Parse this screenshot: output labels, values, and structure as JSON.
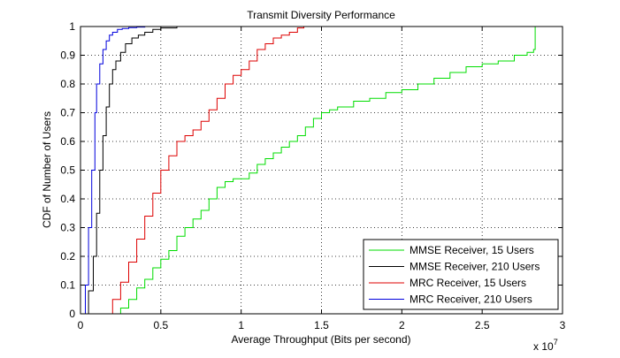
{
  "chart_data": {
    "type": "line",
    "title": "Transmit Diversity Performance",
    "xlabel": "Average Throughput (Bits per second)",
    "ylabel": "CDF of Number of Users",
    "x_exponent_label": "x 10",
    "x_exponent_power": "7",
    "xlim": [
      0,
      3
    ],
    "ylim": [
      0,
      1
    ],
    "xticks": [
      "0",
      "0.5",
      "1",
      "1.5",
      "2",
      "2.5",
      "3"
    ],
    "yticks": [
      "0",
      "0.1",
      "0.2",
      "0.3",
      "0.4",
      "0.5",
      "0.6",
      "0.7",
      "0.8",
      "0.9",
      "1"
    ],
    "grid": true,
    "legend_position": "bottom-right",
    "series": [
      {
        "name": "MMSE Receiver, 15 Users",
        "color": "#00dd00",
        "x": [
          0.2,
          0.25,
          0.3,
          0.35,
          0.4,
          0.45,
          0.5,
          0.55,
          0.6,
          0.65,
          0.7,
          0.75,
          0.8,
          0.85,
          0.9,
          0.95,
          1.0,
          1.05,
          1.1,
          1.15,
          1.2,
          1.25,
          1.3,
          1.35,
          1.4,
          1.45,
          1.5,
          1.55,
          1.6,
          1.7,
          1.8,
          1.9,
          2.0,
          2.1,
          2.2,
          2.3,
          2.4,
          2.5,
          2.6,
          2.7,
          2.78,
          2.82,
          2.83,
          2.83
        ],
        "y": [
          0.0,
          0.02,
          0.05,
          0.09,
          0.12,
          0.16,
          0.19,
          0.22,
          0.27,
          0.3,
          0.33,
          0.36,
          0.4,
          0.44,
          0.46,
          0.47,
          0.47,
          0.49,
          0.52,
          0.54,
          0.56,
          0.58,
          0.6,
          0.62,
          0.65,
          0.68,
          0.7,
          0.71,
          0.72,
          0.74,
          0.75,
          0.77,
          0.78,
          0.8,
          0.82,
          0.84,
          0.86,
          0.87,
          0.88,
          0.9,
          0.91,
          0.92,
          0.95,
          1.0
        ]
      },
      {
        "name": "MMSE Receiver, 210 Users",
        "color": "#000000",
        "x": [
          0.01,
          0.05,
          0.08,
          0.1,
          0.12,
          0.14,
          0.16,
          0.18,
          0.2,
          0.22,
          0.25,
          0.28,
          0.32,
          0.36,
          0.4,
          0.45,
          0.5,
          0.6,
          0.75
        ],
        "y": [
          0.0,
          0.08,
          0.2,
          0.35,
          0.5,
          0.62,
          0.72,
          0.8,
          0.85,
          0.88,
          0.91,
          0.94,
          0.96,
          0.97,
          0.98,
          0.99,
          0.995,
          1.0,
          1.0
        ]
      },
      {
        "name": "MRC Receiver, 15 Users",
        "color": "#dd0000",
        "x": [
          0.15,
          0.2,
          0.25,
          0.3,
          0.35,
          0.4,
          0.45,
          0.5,
          0.55,
          0.6,
          0.65,
          0.7,
          0.75,
          0.8,
          0.85,
          0.9,
          0.95,
          1.0,
          1.05,
          1.1,
          1.15,
          1.2,
          1.25,
          1.3,
          1.35,
          1.39
        ],
        "y": [
          0.0,
          0.05,
          0.11,
          0.18,
          0.26,
          0.34,
          0.42,
          0.5,
          0.55,
          0.6,
          0.62,
          0.64,
          0.67,
          0.71,
          0.75,
          0.8,
          0.83,
          0.85,
          0.88,
          0.92,
          0.94,
          0.96,
          0.97,
          0.98,
          0.995,
          1.0
        ]
      },
      {
        "name": "MRC Receiver, 210 Users",
        "color": "#0000dd",
        "x": [
          0.01,
          0.03,
          0.05,
          0.07,
          0.09,
          0.1,
          0.12,
          0.14,
          0.16,
          0.18,
          0.2,
          0.23,
          0.26,
          0.3,
          0.35,
          0.4,
          0.45,
          0.5
        ],
        "y": [
          0.0,
          0.1,
          0.3,
          0.5,
          0.7,
          0.8,
          0.87,
          0.92,
          0.95,
          0.97,
          0.98,
          0.99,
          0.993,
          0.996,
          0.998,
          1.0,
          1.0,
          1.0
        ]
      }
    ]
  }
}
